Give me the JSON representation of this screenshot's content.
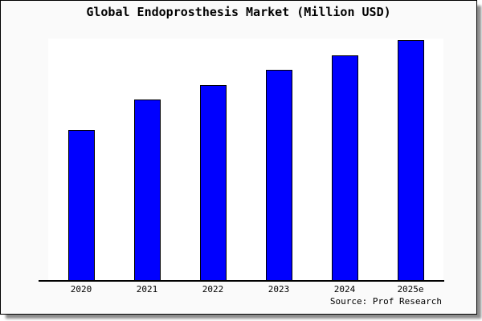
{
  "figure": {
    "source_note": "Source: Prof Research"
  },
  "chart_data": {
    "type": "bar",
    "title": "Global Endoprosthesis Market (Million USD)",
    "categories": [
      "2020",
      "2021",
      "2022",
      "2023",
      "2024",
      "2025e"
    ],
    "values": [
      62.7,
      75.3,
      81.5,
      87.7,
      93.7,
      100
    ],
    "value_basis": "relative estimate from bar pixel heights; tallest bar (2025e) = 100; chart shows no y-axis tick labels",
    "xlabel": "",
    "ylabel": "",
    "ylim": [
      0,
      100.7
    ],
    "grid": false,
    "legend": null,
    "colors": {
      "bar_fill": "#0000ff",
      "bar_border": "#000000",
      "figure_background": "#fafafa",
      "plot_background": "#ffffff",
      "axis_line": "#000000",
      "text": "#000000"
    }
  }
}
